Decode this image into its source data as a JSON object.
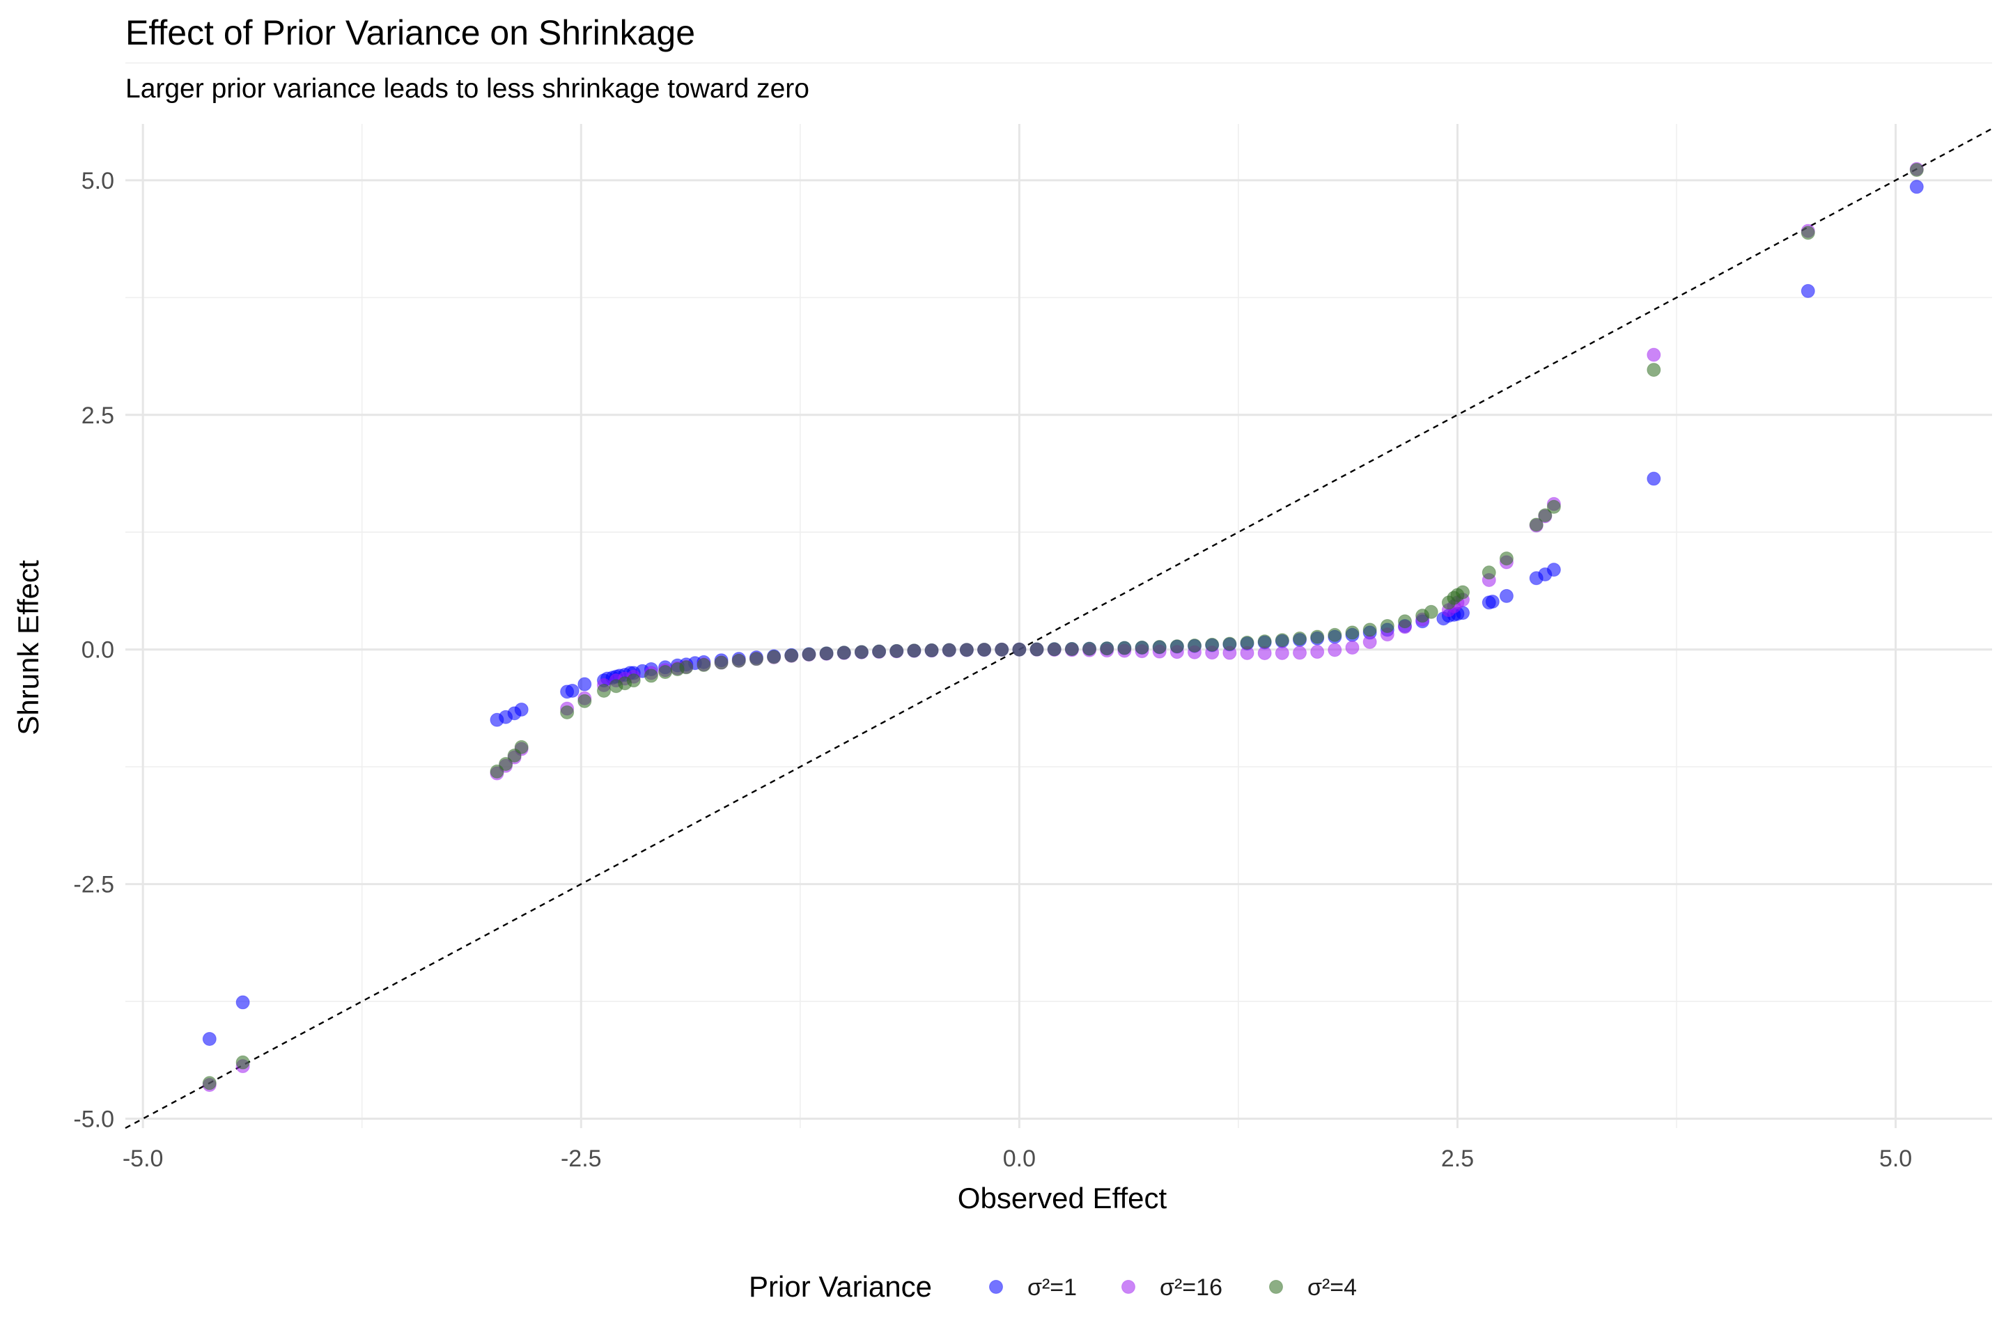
{
  "chart_data": {
    "type": "scatter",
    "title": "Effect of Prior Variance on Shrinkage",
    "subtitle": "Larger prior variance leads to less shrinkage toward zero",
    "xlabel": "Observed Effect",
    "ylabel": "Shrunk Effect",
    "xlim": [
      -5.1,
      5.55
    ],
    "ylim": [
      -5.1,
      5.6
    ],
    "xticks": [
      -5.0,
      -2.5,
      0.0,
      2.5,
      5.0
    ],
    "xtick_labels": [
      "-5.0",
      "-2.5",
      "0.0",
      "2.5",
      "5.0"
    ],
    "yticks": [
      -5.0,
      -2.5,
      0.0,
      2.5,
      5.0
    ],
    "ytick_labels": [
      "-5.0",
      "-2.5",
      "0.0",
      "2.5",
      "5.0"
    ],
    "grid": true,
    "reference_line": {
      "slope": 1,
      "intercept": 0,
      "style": "dashed",
      "color": "#000000"
    },
    "legend": {
      "title": "Prior Variance",
      "position": "bottom"
    },
    "series": [
      {
        "name": "σ²=1",
        "color": "#0000ff",
        "points": [
          [
            -4.62,
            -4.15
          ],
          [
            -4.43,
            -3.76
          ],
          [
            -2.98,
            -0.75
          ],
          [
            -2.93,
            -0.72
          ],
          [
            -2.88,
            -0.68
          ],
          [
            -2.84,
            -0.64
          ],
          [
            -2.58,
            -0.45
          ],
          [
            -2.55,
            -0.44
          ],
          [
            -2.48,
            -0.37
          ],
          [
            -2.37,
            -0.33
          ],
          [
            -2.35,
            -0.31
          ],
          [
            -2.32,
            -0.3
          ],
          [
            -2.3,
            -0.29
          ],
          [
            -2.28,
            -0.28
          ],
          [
            -2.25,
            -0.27
          ],
          [
            -2.22,
            -0.25
          ],
          [
            -2.2,
            -0.25
          ],
          [
            -2.15,
            -0.23
          ],
          [
            -2.1,
            -0.21
          ],
          [
            -2.02,
            -0.19
          ],
          [
            -1.95,
            -0.17
          ],
          [
            -1.9,
            -0.16
          ],
          [
            -1.85,
            -0.145
          ],
          [
            -1.8,
            -0.135
          ],
          [
            -1.7,
            -0.115
          ],
          [
            -1.6,
            -0.1
          ],
          [
            -1.5,
            -0.085
          ],
          [
            -1.4,
            -0.072
          ],
          [
            -1.3,
            -0.06
          ],
          [
            -1.2,
            -0.05
          ],
          [
            -1.1,
            -0.042
          ],
          [
            -1.0,
            -0.035
          ],
          [
            -0.9,
            -0.028
          ],
          [
            -0.8,
            -0.022
          ],
          [
            -0.7,
            -0.017
          ],
          [
            -0.6,
            -0.013
          ],
          [
            -0.5,
            -0.01
          ],
          [
            -0.4,
            -0.007
          ],
          [
            -0.3,
            -0.005
          ],
          [
            -0.2,
            -0.003
          ],
          [
            -0.1,
            -0.001
          ],
          [
            0.0,
            0.0
          ],
          [
            0.1,
            0.001
          ],
          [
            0.2,
            0.003
          ],
          [
            0.3,
            0.005
          ],
          [
            0.4,
            0.008
          ],
          [
            0.5,
            0.011
          ],
          [
            0.6,
            0.015
          ],
          [
            0.7,
            0.019
          ],
          [
            0.8,
            0.024
          ],
          [
            0.9,
            0.03
          ],
          [
            1.0,
            0.037
          ],
          [
            1.1,
            0.045
          ],
          [
            1.2,
            0.054
          ],
          [
            1.3,
            0.064
          ],
          [
            1.4,
            0.075
          ],
          [
            1.5,
            0.088
          ],
          [
            1.6,
            0.102
          ],
          [
            1.7,
            0.118
          ],
          [
            1.8,
            0.135
          ],
          [
            1.9,
            0.155
          ],
          [
            2.0,
            0.18
          ],
          [
            2.1,
            0.21
          ],
          [
            2.2,
            0.25
          ],
          [
            2.3,
            0.3
          ],
          [
            2.42,
            0.33
          ],
          [
            2.45,
            0.36
          ],
          [
            2.48,
            0.37
          ],
          [
            2.5,
            0.38
          ],
          [
            2.53,
            0.39
          ],
          [
            2.68,
            0.5
          ],
          [
            2.7,
            0.51
          ],
          [
            2.78,
            0.57
          ],
          [
            2.95,
            0.76
          ],
          [
            3.0,
            0.8
          ],
          [
            3.05,
            0.85
          ],
          [
            3.62,
            1.82
          ],
          [
            4.5,
            3.82
          ],
          [
            5.12,
            4.93
          ]
        ]
      },
      {
        "name": "σ²=16",
        "color": "#a020f0",
        "points": [
          [
            -4.62,
            -4.64
          ],
          [
            -4.43,
            -4.44
          ],
          [
            -2.98,
            -1.32
          ],
          [
            -2.93,
            -1.24
          ],
          [
            -2.88,
            -1.15
          ],
          [
            -2.84,
            -1.06
          ],
          [
            -2.58,
            -0.63
          ],
          [
            -2.48,
            -0.52
          ],
          [
            -2.37,
            -0.38
          ],
          [
            -2.3,
            -0.33
          ],
          [
            -2.25,
            -0.31
          ],
          [
            -2.2,
            -0.29
          ],
          [
            -2.1,
            -0.25
          ],
          [
            -2.02,
            -0.22
          ],
          [
            -1.95,
            -0.2
          ],
          [
            -1.9,
            -0.185
          ],
          [
            -1.8,
            -0.16
          ],
          [
            -1.7,
            -0.14
          ],
          [
            -1.6,
            -0.12
          ],
          [
            -1.5,
            -0.1
          ],
          [
            -1.4,
            -0.083
          ],
          [
            -1.3,
            -0.068
          ],
          [
            -1.2,
            -0.055
          ],
          [
            -1.1,
            -0.045
          ],
          [
            -1.0,
            -0.037
          ],
          [
            -0.9,
            -0.03
          ],
          [
            -0.8,
            -0.024
          ],
          [
            -0.7,
            -0.019
          ],
          [
            -0.6,
            -0.014
          ],
          [
            -0.5,
            -0.011
          ],
          [
            -0.4,
            -0.008
          ],
          [
            -0.3,
            -0.005
          ],
          [
            -0.2,
            -0.003
          ],
          [
            -0.1,
            -0.001
          ],
          [
            0.0,
            0.0
          ],
          [
            0.1,
            -0.001
          ],
          [
            0.2,
            -0.003
          ],
          [
            0.3,
            -0.005
          ],
          [
            0.4,
            -0.008
          ],
          [
            0.5,
            -0.011
          ],
          [
            0.6,
            -0.014
          ],
          [
            0.7,
            -0.018
          ],
          [
            0.8,
            -0.022
          ],
          [
            0.9,
            -0.026
          ],
          [
            1.0,
            -0.03
          ],
          [
            1.1,
            -0.033
          ],
          [
            1.2,
            -0.036
          ],
          [
            1.3,
            -0.038
          ],
          [
            1.4,
            -0.039
          ],
          [
            1.5,
            -0.038
          ],
          [
            1.6,
            -0.035
          ],
          [
            1.7,
            -0.025
          ],
          [
            1.8,
            -0.005
          ],
          [
            1.9,
            0.02
          ],
          [
            2.0,
            0.08
          ],
          [
            2.1,
            0.16
          ],
          [
            2.2,
            0.24
          ],
          [
            2.3,
            0.32
          ],
          [
            2.45,
            0.42
          ],
          [
            2.48,
            0.46
          ],
          [
            2.5,
            0.5
          ],
          [
            2.53,
            0.53
          ],
          [
            2.68,
            0.74
          ],
          [
            2.78,
            0.93
          ],
          [
            2.95,
            1.32
          ],
          [
            3.0,
            1.42
          ],
          [
            3.05,
            1.55
          ],
          [
            3.62,
            3.14
          ],
          [
            4.5,
            4.46
          ],
          [
            5.12,
            5.12
          ]
        ]
      },
      {
        "name": "σ²=4",
        "color": "#2e6b1f",
        "points": [
          [
            -4.62,
            -4.62
          ],
          [
            -4.43,
            -4.4
          ],
          [
            -2.98,
            -1.3
          ],
          [
            -2.93,
            -1.22
          ],
          [
            -2.88,
            -1.13
          ],
          [
            -2.84,
            -1.04
          ],
          [
            -2.58,
            -0.67
          ],
          [
            -2.48,
            -0.55
          ],
          [
            -2.37,
            -0.44
          ],
          [
            -2.3,
            -0.39
          ],
          [
            -2.25,
            -0.36
          ],
          [
            -2.2,
            -0.33
          ],
          [
            -2.1,
            -0.28
          ],
          [
            -2.02,
            -0.24
          ],
          [
            -1.95,
            -0.21
          ],
          [
            -1.9,
            -0.19
          ],
          [
            -1.8,
            -0.165
          ],
          [
            -1.7,
            -0.14
          ],
          [
            -1.6,
            -0.12
          ],
          [
            -1.5,
            -0.1
          ],
          [
            -1.4,
            -0.08
          ],
          [
            -1.3,
            -0.065
          ],
          [
            -1.2,
            -0.052
          ],
          [
            -1.1,
            -0.042
          ],
          [
            -1.0,
            -0.034
          ],
          [
            -0.9,
            -0.027
          ],
          [
            -0.8,
            -0.021
          ],
          [
            -0.7,
            -0.016
          ],
          [
            -0.6,
            -0.012
          ],
          [
            -0.5,
            -0.009
          ],
          [
            -0.4,
            -0.006
          ],
          [
            -0.3,
            -0.004
          ],
          [
            -0.2,
            -0.002
          ],
          [
            -0.1,
            -0.001
          ],
          [
            0.0,
            0.0
          ],
          [
            0.1,
            0.001
          ],
          [
            0.2,
            0.003
          ],
          [
            0.3,
            0.005
          ],
          [
            0.4,
            0.008
          ],
          [
            0.5,
            0.012
          ],
          [
            0.6,
            0.016
          ],
          [
            0.7,
            0.021
          ],
          [
            0.8,
            0.027
          ],
          [
            0.9,
            0.034
          ],
          [
            1.0,
            0.042
          ],
          [
            1.1,
            0.051
          ],
          [
            1.2,
            0.061
          ],
          [
            1.3,
            0.073
          ],
          [
            1.4,
            0.086
          ],
          [
            1.5,
            0.1
          ],
          [
            1.6,
            0.117
          ],
          [
            1.7,
            0.135
          ],
          [
            1.8,
            0.155
          ],
          [
            1.9,
            0.18
          ],
          [
            2.0,
            0.21
          ],
          [
            2.1,
            0.25
          ],
          [
            2.2,
            0.3
          ],
          [
            2.3,
            0.36
          ],
          [
            2.35,
            0.4
          ],
          [
            2.45,
            0.5
          ],
          [
            2.48,
            0.55
          ],
          [
            2.5,
            0.58
          ],
          [
            2.53,
            0.61
          ],
          [
            2.68,
            0.82
          ],
          [
            2.78,
            0.97
          ],
          [
            2.95,
            1.33
          ],
          [
            3.0,
            1.43
          ],
          [
            3.05,
            1.52
          ],
          [
            3.62,
            2.98
          ],
          [
            4.5,
            4.44
          ],
          [
            5.12,
            5.11
          ]
        ]
      }
    ]
  }
}
